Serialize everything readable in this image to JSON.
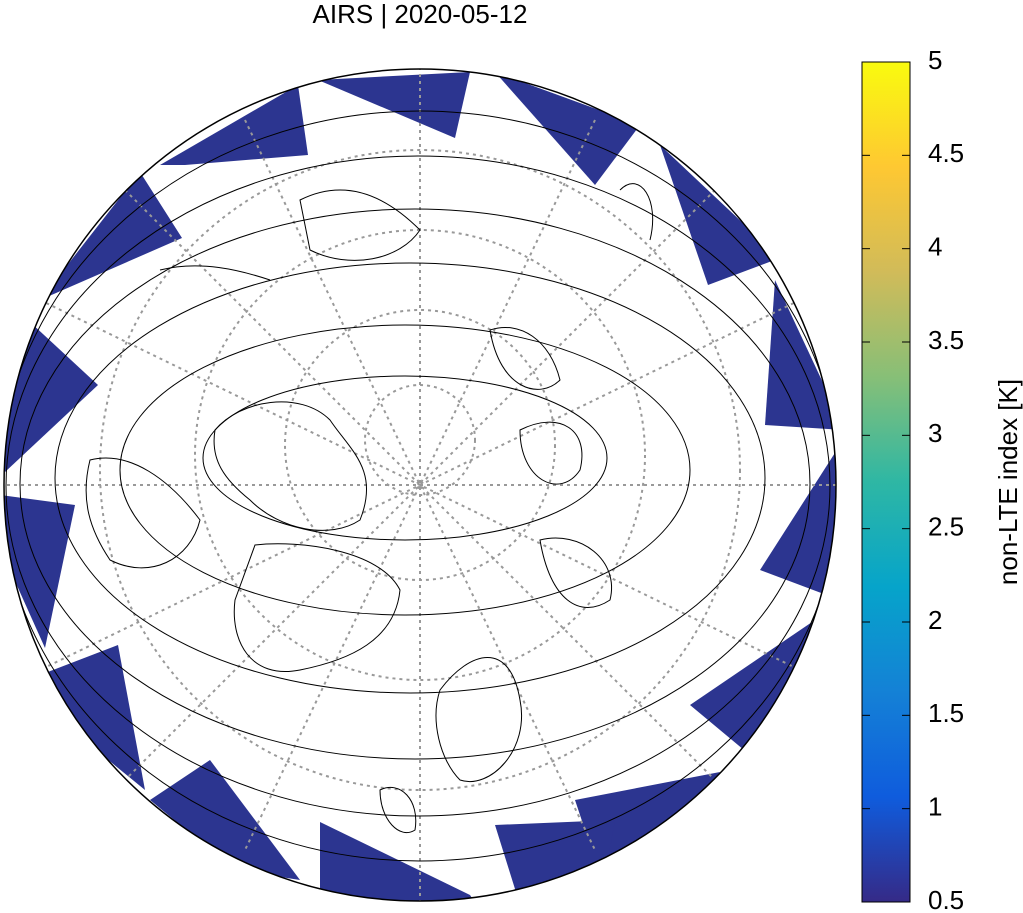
{
  "chart_data": {
    "type": "map",
    "title": "AIRS | 2020-05-12",
    "colorbar": {
      "label": "non-LTE index [K]",
      "lim": [
        0.5,
        5
      ],
      "ticks": [
        0.5,
        1,
        1.5,
        2,
        2.5,
        3,
        3.5,
        4,
        4.5,
        5
      ],
      "colormap": [
        "#352a87",
        "#0f5cdd",
        "#1481d6",
        "#06a4ca",
        "#2eb7a4",
        "#87bf77",
        "#d1bb59",
        "#fec832",
        "#f9fb0e"
      ]
    }
  }
}
